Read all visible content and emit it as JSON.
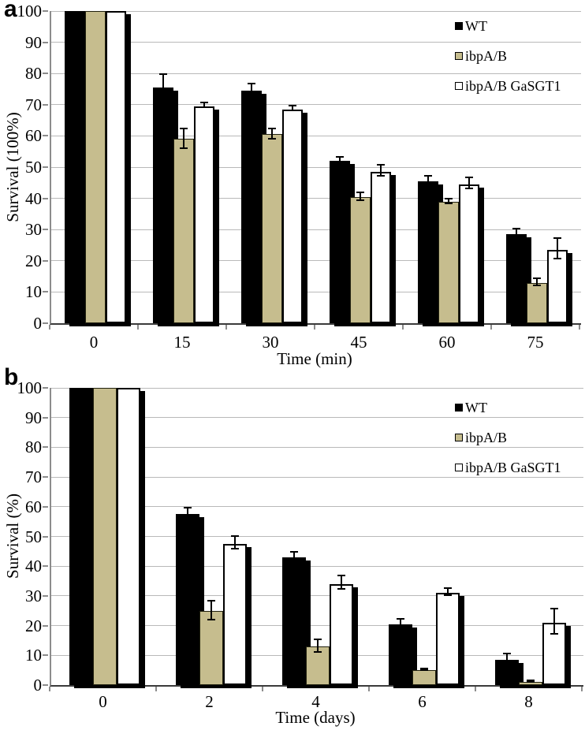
{
  "panels": [
    {
      "letter": "a"
    },
    {
      "letter": "b"
    }
  ],
  "colors": {
    "wt_fill": "#000000",
    "ibpab_fill": "#c6bd8e",
    "gasgt1_fill": "#ffffff",
    "bar_shadow": "#000000",
    "gridline": "#b9b9b9",
    "axis": "#8c8c8c",
    "baseline": "#3b3b3b",
    "text": "#000000"
  },
  "chart_data": [
    {
      "panel": "a",
      "type": "bar",
      "title": "",
      "xlabel": "Time (min)",
      "ylabel": "Survival (100%)",
      "ylim": [
        0,
        100
      ],
      "yticks": [
        0,
        10,
        20,
        30,
        40,
        50,
        60,
        70,
        80,
        90,
        100
      ],
      "grid": true,
      "legend_position": "top-right",
      "categories": [
        "0",
        "15",
        "30",
        "45",
        "60",
        "75"
      ],
      "series": [
        {
          "name": "WT",
          "values": [
            100,
            75.5,
            74.5,
            52,
            45.5,
            28.5
          ],
          "errors": [
            0,
            4.5,
            2.5,
            1.5,
            2,
            2
          ]
        },
        {
          "name": "ibpA/B",
          "values": [
            100,
            59,
            60.5,
            40.5,
            39,
            13
          ],
          "errors": [
            0,
            3.5,
            2,
            1.5,
            1,
            1.5
          ]
        },
        {
          "name": "ibpA/B GaSGT1",
          "values": [
            100,
            69.5,
            68.5,
            48.5,
            44.5,
            23.5
          ],
          "errors": [
            0,
            1,
            1,
            2,
            2,
            3.5
          ]
        }
      ]
    },
    {
      "panel": "b",
      "type": "bar",
      "title": "",
      "xlabel": "Time (days)",
      "ylabel": "Survival (%)",
      "ylim": [
        0,
        100
      ],
      "yticks": [
        0,
        10,
        20,
        30,
        40,
        50,
        60,
        70,
        80,
        90,
        100
      ],
      "grid": true,
      "legend_position": "top-right",
      "categories": [
        "0",
        "2",
        "4",
        "6",
        "8"
      ],
      "series": [
        {
          "name": "WT",
          "values": [
            100,
            57.5,
            43,
            20.5,
            8.5
          ],
          "errors": [
            0,
            2.5,
            2,
            2,
            2.5
          ]
        },
        {
          "name": "ibpA/B",
          "values": [
            100,
            25,
            13,
            5,
            1
          ],
          "errors": [
            0,
            3.5,
            2.5,
            0.5,
            0.5
          ]
        },
        {
          "name": "ibpA/B GaSGT1",
          "values": [
            100,
            47.5,
            34,
            31,
            21
          ],
          "errors": [
            0,
            2.5,
            2.5,
            1.5,
            4.5
          ]
        }
      ]
    }
  ]
}
